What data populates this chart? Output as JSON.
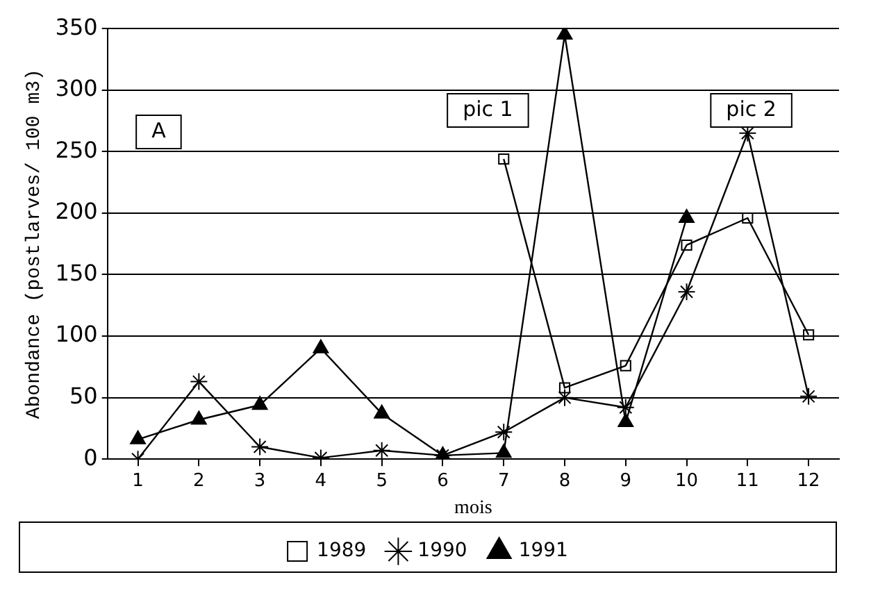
{
  "chart_data": {
    "type": "line",
    "xlabel": "mois",
    "ylabel": "Abondance (postlarves/ 100 m3)",
    "x": [
      1,
      2,
      3,
      4,
      5,
      6,
      7,
      8,
      9,
      10,
      11,
      12
    ],
    "series": [
      {
        "name": "1989",
        "color": "#000000",
        "marker": "square",
        "x": [
          7,
          8,
          9,
          10,
          11,
          12
        ],
        "values": [
          244,
          58,
          76,
          174,
          196,
          101
        ]
      },
      {
        "name": "1990",
        "color": "#000000",
        "marker": "cross",
        "values": [
          0,
          63,
          10,
          1,
          7,
          3,
          22,
          50,
          42,
          136,
          265,
          51
        ]
      },
      {
        "name": "1991",
        "color": "#000000",
        "marker": "triangle",
        "x": [
          1,
          2,
          3,
          4,
          5,
          6,
          7,
          8,
          9,
          10
        ],
        "values": [
          16,
          32,
          44,
          90,
          37,
          3,
          5,
          345,
          30,
          196
        ]
      }
    ],
    "xlim": [
      0.5,
      12.5
    ],
    "xticks": [
      1,
      2,
      3,
      4,
      5,
      6,
      7,
      8,
      9,
      10,
      11,
      12
    ],
    "ylim": [
      0,
      350
    ],
    "yticks": [
      0,
      50,
      100,
      150,
      200,
      250,
      300,
      350
    ],
    "grid": "y",
    "legend": "bottom",
    "line_style": "solid",
    "annotations": [
      "A",
      "pic 1",
      "pic 2"
    ]
  }
}
